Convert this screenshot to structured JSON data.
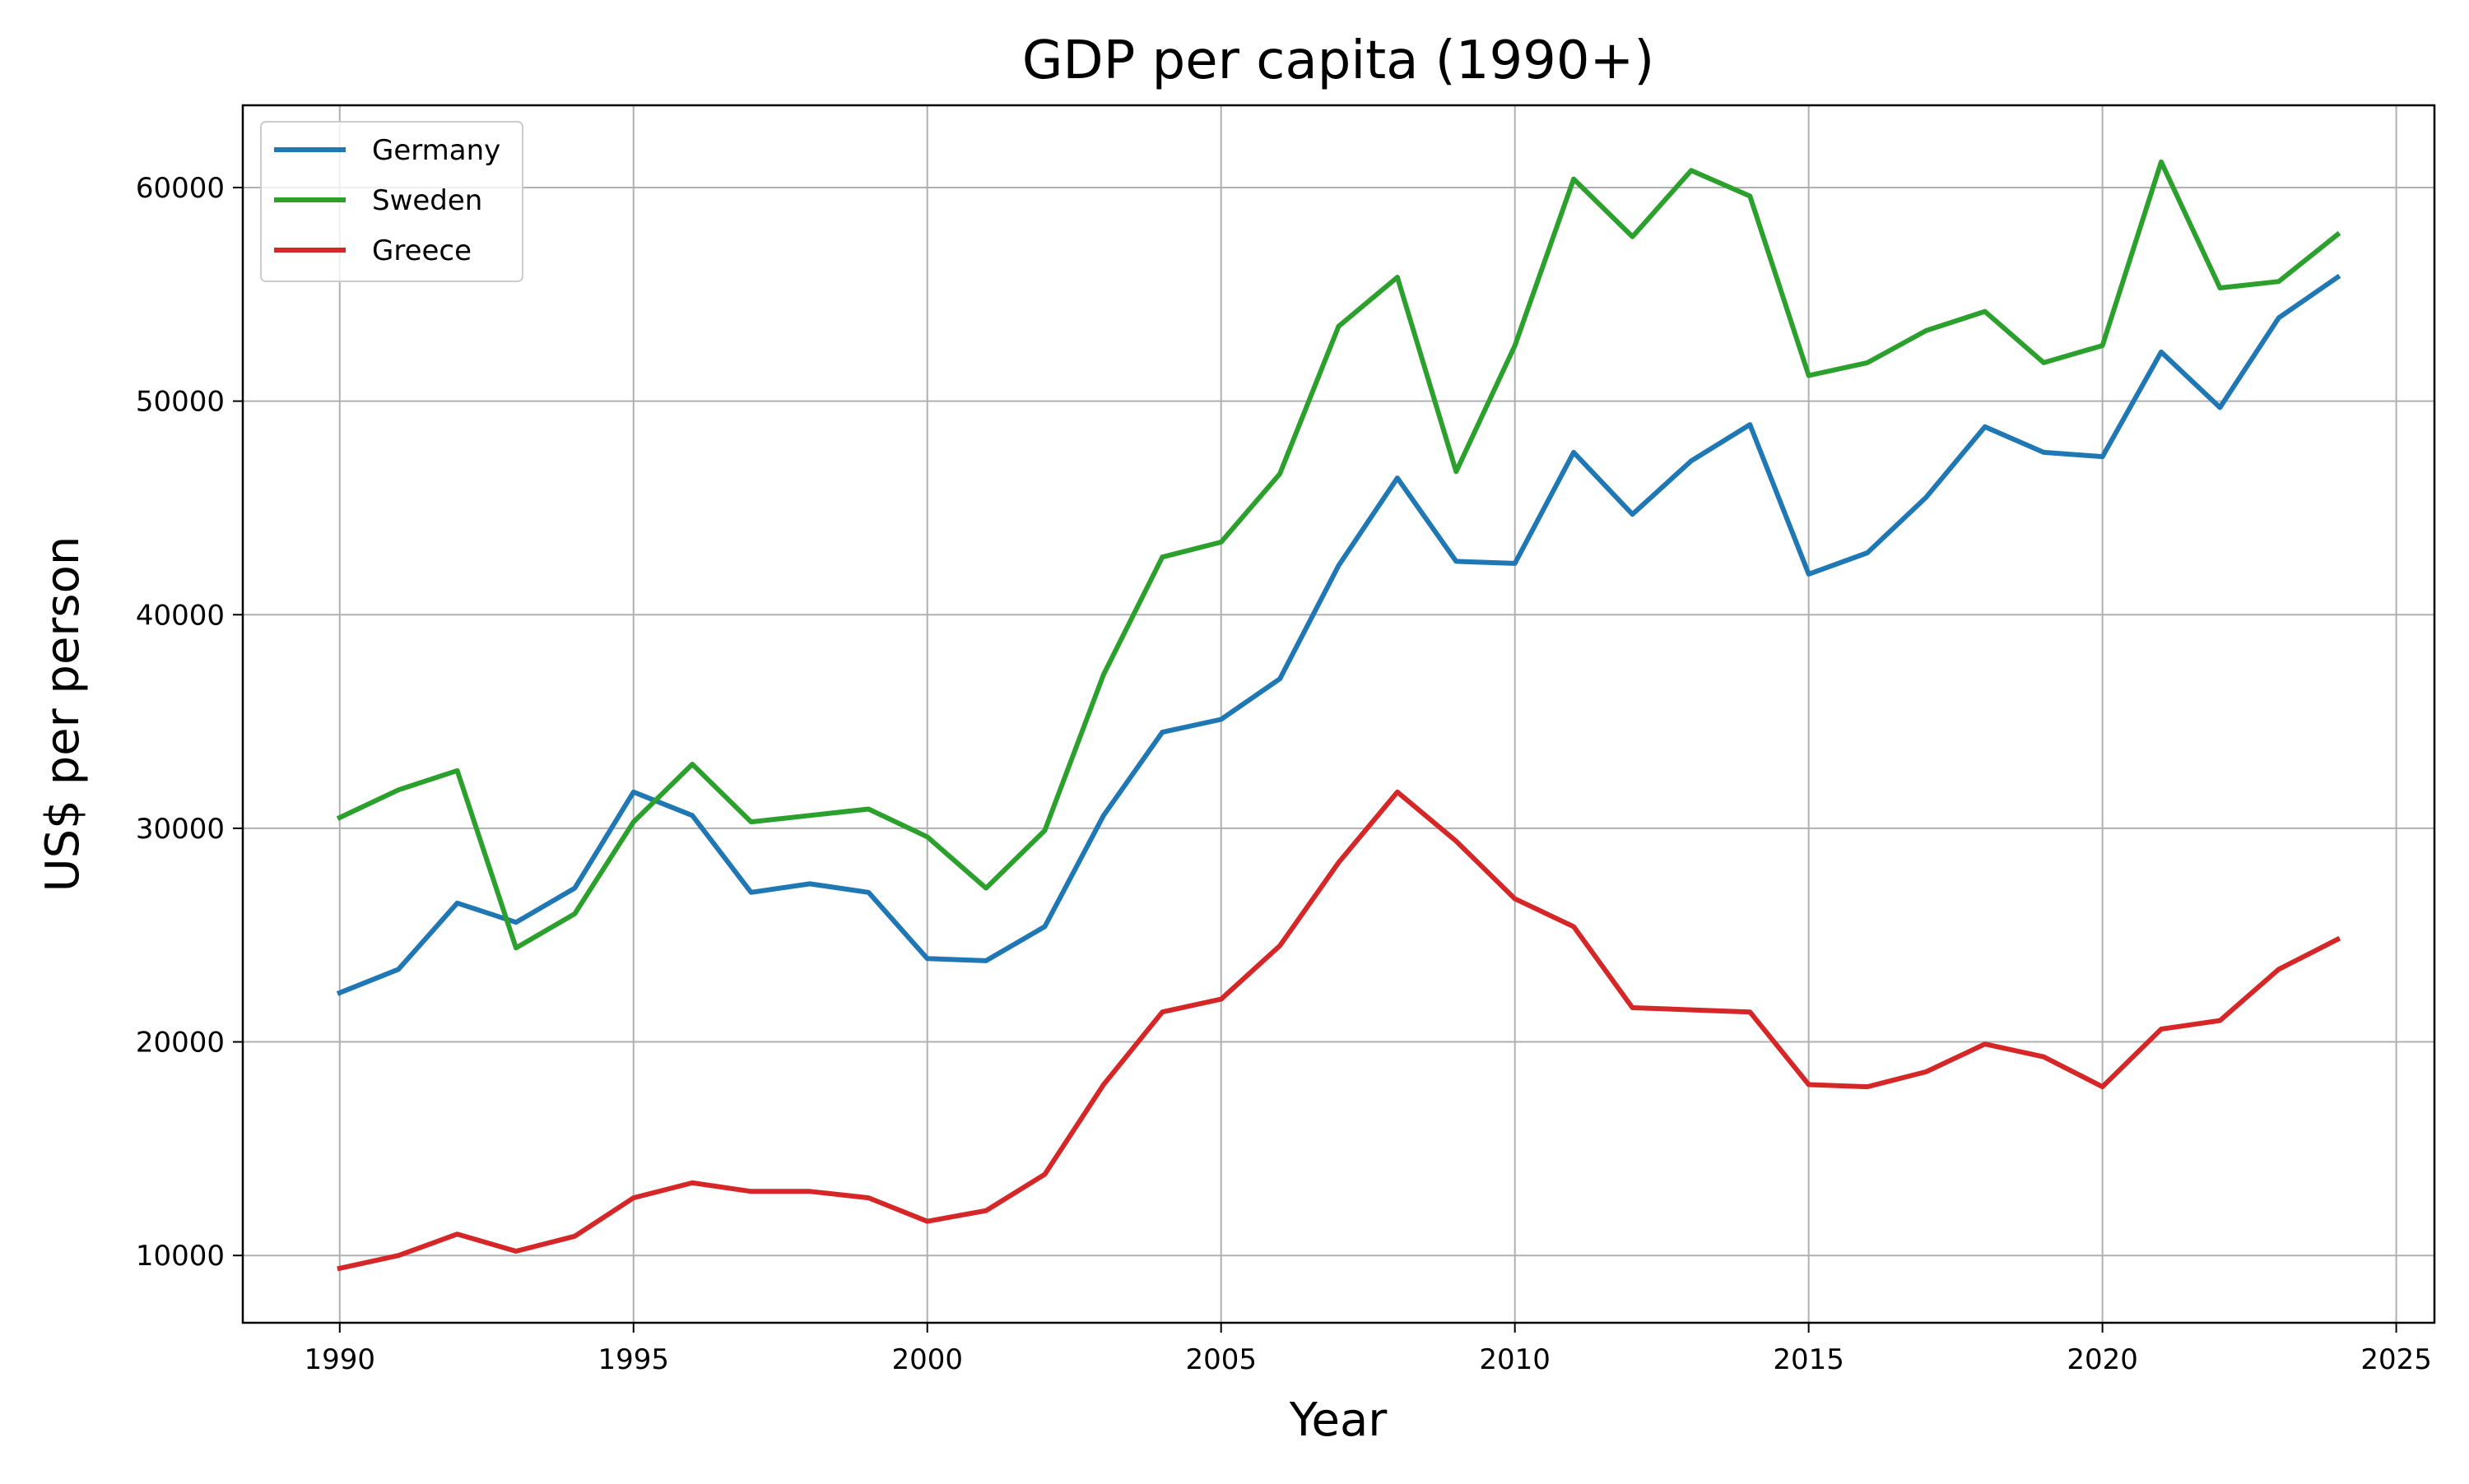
{
  "chart_data": {
    "type": "line",
    "title": "GDP per capita (1990+)",
    "xlabel": "Year",
    "ylabel": "US$ per person",
    "xlim": [
      1988.35,
      2025.65
    ],
    "ylim": [
      6850,
      63850
    ],
    "x_ticks": [
      1990,
      1995,
      2000,
      2005,
      2010,
      2015,
      2020,
      2025
    ],
    "y_ticks": [
      10000,
      20000,
      30000,
      40000,
      50000,
      60000
    ],
    "grid": true,
    "legend_position": "upper-left",
    "x": [
      1990,
      1991,
      1992,
      1993,
      1994,
      1995,
      1996,
      1997,
      1998,
      1999,
      2000,
      2001,
      2002,
      2003,
      2004,
      2005,
      2006,
      2007,
      2008,
      2009,
      2010,
      2011,
      2012,
      2013,
      2014,
      2015,
      2016,
      2017,
      2018,
      2019,
      2020,
      2021,
      2022,
      2023,
      2024
    ],
    "series": [
      {
        "name": "Germany",
        "color": "#1f77b4",
        "values": [
          22300,
          23400,
          26500,
          25600,
          27200,
          31700,
          30600,
          27000,
          27400,
          27000,
          23900,
          23800,
          25400,
          30600,
          34500,
          35100,
          37000,
          42300,
          46400,
          42500,
          42400,
          47600,
          44700,
          47200,
          48900,
          41900,
          42900,
          45500,
          48800,
          47600,
          47400,
          52300,
          49700,
          53900,
          55800
        ]
      },
      {
        "name": "Sweden",
        "color": "#2ca02c",
        "values": [
          30500,
          31800,
          32700,
          24400,
          26000,
          30300,
          33000,
          30300,
          30600,
          30900,
          29600,
          27200,
          29900,
          37200,
          42700,
          43400,
          46600,
          53500,
          55800,
          46700,
          52600,
          60400,
          57700,
          60800,
          59600,
          51200,
          51800,
          53300,
          54200,
          51800,
          52600,
          61200,
          55300,
          55600,
          57800
        ]
      },
      {
        "name": "Greece",
        "color": "#d62728",
        "values": [
          9400,
          10000,
          11000,
          10200,
          10900,
          12700,
          13400,
          13000,
          13000,
          12700,
          11600,
          12100,
          13800,
          18000,
          21400,
          22000,
          24500,
          28400,
          31700,
          29400,
          26700,
          25400,
          21600,
          21500,
          21400,
          18000,
          17900,
          18600,
          19900,
          19300,
          17900,
          20600,
          21000,
          23400,
          24800
        ]
      }
    ]
  }
}
